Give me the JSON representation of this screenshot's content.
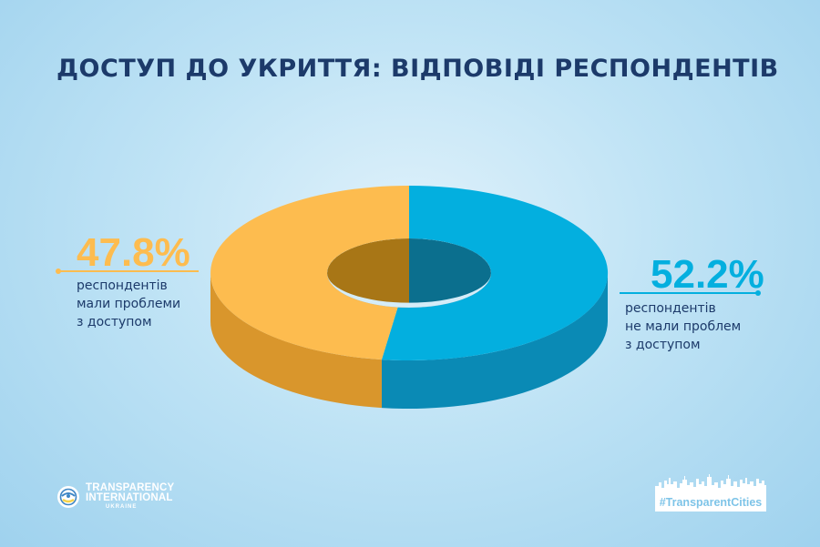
{
  "title": "ДОСТУП ДО УКРИТТЯ: ВІДПОВІДІ РЕСПОНДЕНТІВ",
  "chart_data": {
    "type": "pie",
    "style": "3d-donut",
    "slices": [
      {
        "value": 47.8,
        "label": "47.8%",
        "description": [
          "респондентів",
          "мали проблеми",
          "з доступом"
        ],
        "color": "#fdbc4f",
        "side_color": "#d9962c",
        "inner_color": "#a87616"
      },
      {
        "value": 52.2,
        "label": "52.2%",
        "description": [
          "респондентів",
          "не мали проблем",
          "з доступом"
        ],
        "color": "#03afdf",
        "side_color": "#0a8ab5",
        "inner_color": "#0b6f8e"
      }
    ]
  },
  "logos": {
    "ti": {
      "line1": "TRANSPARENCY",
      "line2": "INTERNATIONAL",
      "line3": "UKRAINE"
    },
    "tc": {
      "text": "#TransparentCities"
    }
  }
}
